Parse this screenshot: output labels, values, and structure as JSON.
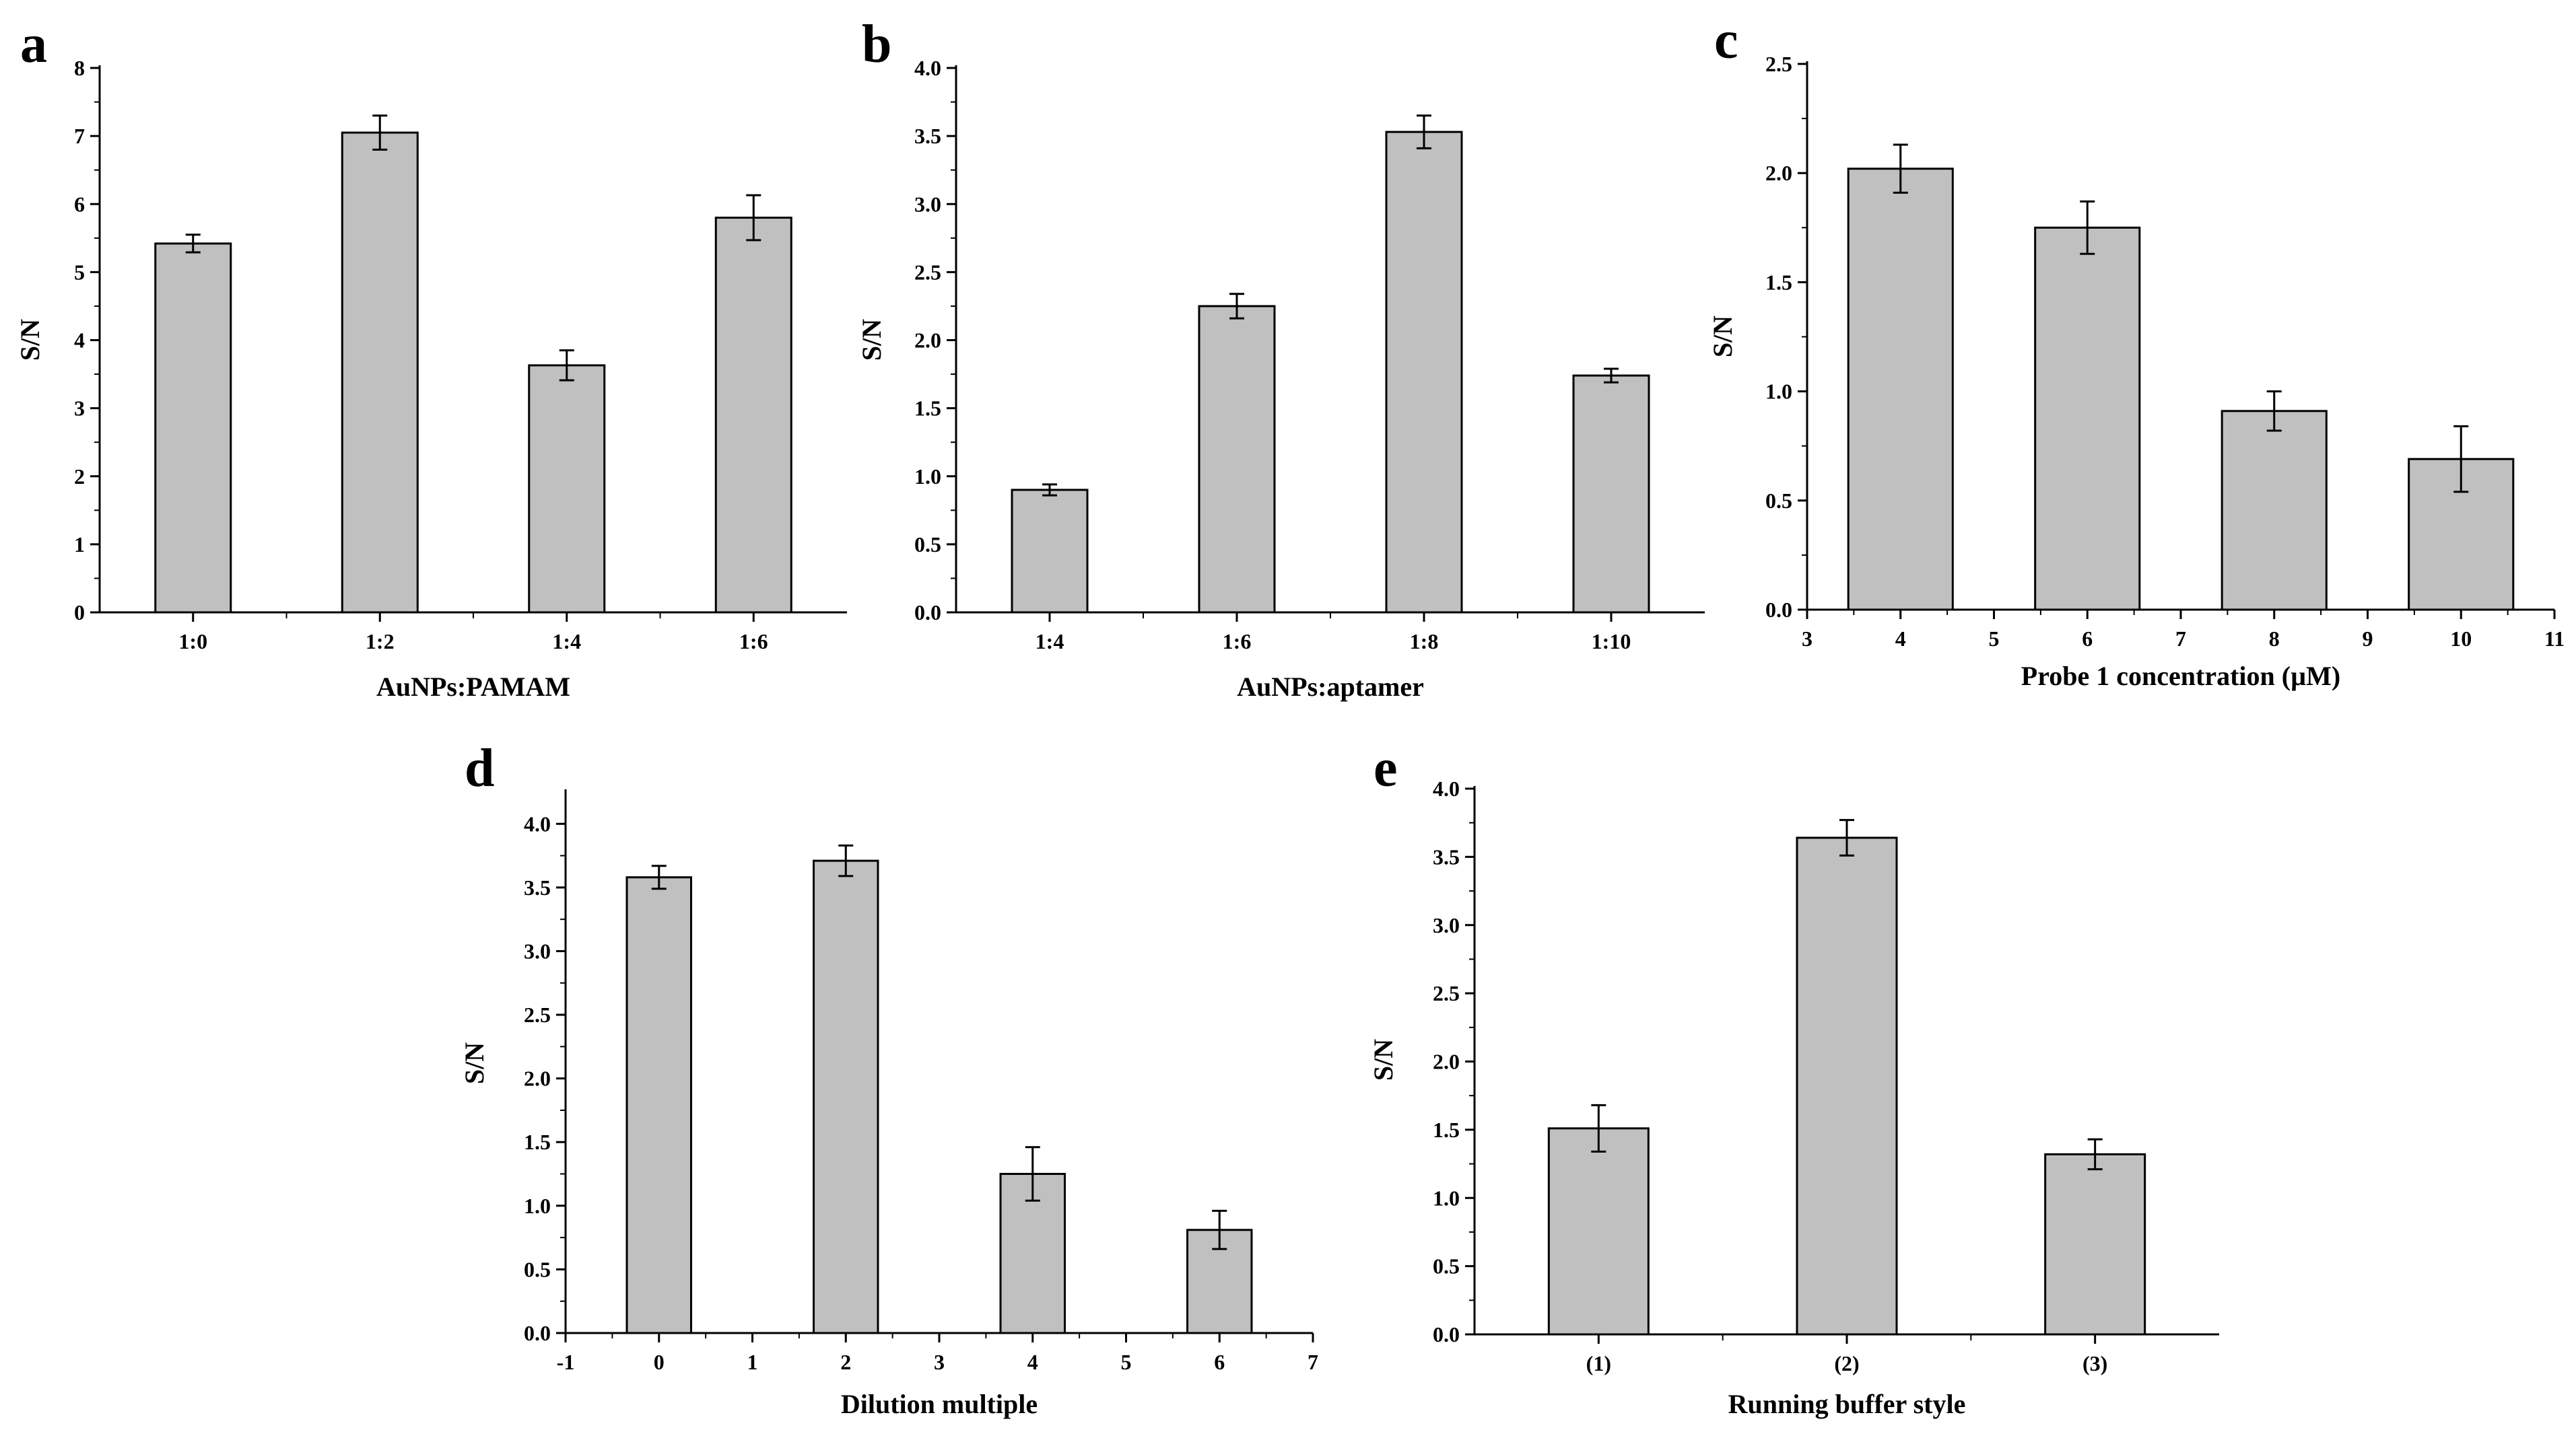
{
  "colors": {
    "bar_fill": "#c0c0c0",
    "bar_stroke": "#000000",
    "axis": "#000000"
  },
  "chart_data": [
    {
      "panel": "a",
      "type": "bar",
      "categories": [
        "1:0",
        "1:2",
        "1:4",
        "1:6"
      ],
      "values": [
        5.42,
        7.05,
        3.63,
        5.8
      ],
      "errors": [
        0.13,
        0.25,
        0.22,
        0.33
      ],
      "xlabel": "AuNPs:PAMAM",
      "ylabel": "S/N",
      "ylim": [
        0,
        8
      ],
      "yticks": [
        "0",
        "1",
        "2",
        "3",
        "4",
        "5",
        "6",
        "7",
        "8"
      ]
    },
    {
      "panel": "b",
      "type": "bar",
      "categories": [
        "1:4",
        "1:6",
        "1:8",
        "1:10"
      ],
      "values": [
        0.9,
        2.25,
        3.53,
        1.74
      ],
      "errors": [
        0.04,
        0.09,
        0.12,
        0.05
      ],
      "xlabel": "AuNPs:aptamer",
      "ylabel": "S/N",
      "ylim": [
        0,
        4
      ],
      "yticks": [
        "0.0",
        "0.5",
        "1.0",
        "1.5",
        "2.0",
        "2.5",
        "3.0",
        "3.5",
        "4.0"
      ]
    },
    {
      "panel": "c",
      "type": "bar",
      "x": [
        4,
        6,
        8,
        10
      ],
      "values": [
        2.02,
        1.75,
        0.91,
        0.69
      ],
      "errors": [
        0.11,
        0.12,
        0.09,
        0.15
      ],
      "bar_width": 1.3,
      "xlabel": "Probe 1 concentration (µM)",
      "ylabel": "S/N",
      "xlim": [
        3,
        11
      ],
      "ylim": [
        0,
        2.5
      ],
      "xticks": [
        "3",
        "4",
        "5",
        "6",
        "7",
        "8",
        "9",
        "10",
        "11"
      ],
      "yticks": [
        "0.0",
        "0.5",
        "1.0",
        "1.5",
        "2.0",
        "2.5"
      ]
    },
    {
      "panel": "d",
      "type": "bar",
      "x": [
        0,
        2,
        4,
        6
      ],
      "values": [
        3.58,
        3.71,
        1.25,
        0.81
      ],
      "errors": [
        0.09,
        0.12,
        0.21,
        0.15
      ],
      "bar_width": 0.8,
      "xlabel": "Dilution multiple",
      "ylabel": "S/N",
      "xlim": [
        -1,
        7
      ],
      "ylim": [
        0,
        4.25
      ],
      "xticks": [
        "-1",
        "0",
        "1",
        "2",
        "3",
        "4",
        "5",
        "6",
        "7"
      ],
      "yticks": [
        "0.0",
        "0.5",
        "1.0",
        "1.5",
        "2.0",
        "2.5",
        "3.0",
        "3.5",
        "4.0"
      ]
    },
    {
      "panel": "e",
      "type": "bar",
      "categories": [
        "(1)",
        "(2)",
        "(3)"
      ],
      "values": [
        1.51,
        3.64,
        1.32
      ],
      "errors": [
        0.17,
        0.13,
        0.11
      ],
      "xlabel": "Running buffer style",
      "ylabel": "S/N",
      "ylim": [
        0,
        4
      ],
      "yticks": [
        "0.0",
        "0.5",
        "1.0",
        "1.5",
        "2.0",
        "2.5",
        "3.0",
        "3.5",
        "4.0"
      ]
    }
  ]
}
